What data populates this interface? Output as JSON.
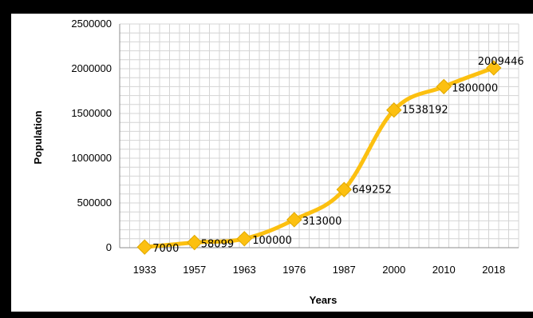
{
  "chart_data": {
    "type": "line",
    "xlabel": "Years",
    "ylabel": "Population",
    "categories": [
      "1933",
      "1957",
      "1963",
      "1976",
      "1987",
      "2000",
      "2010",
      "2018"
    ],
    "series": [
      {
        "name": "",
        "values": [
          7000,
          58099,
          100000,
          313000,
          649252,
          1538192,
          1800000,
          2009446
        ],
        "color": "#fcc010"
      }
    ],
    "data_labels": [
      "7000",
      "58099",
      "100000",
      "313000",
      "649252",
      "1538192",
      "1800000",
      "2009446"
    ],
    "yticks": [
      "0",
      "500000",
      "1000000",
      "1500000",
      "2000000",
      "2500000"
    ],
    "ylim": [
      0,
      2500000
    ],
    "grid": true,
    "legend": "none"
  }
}
